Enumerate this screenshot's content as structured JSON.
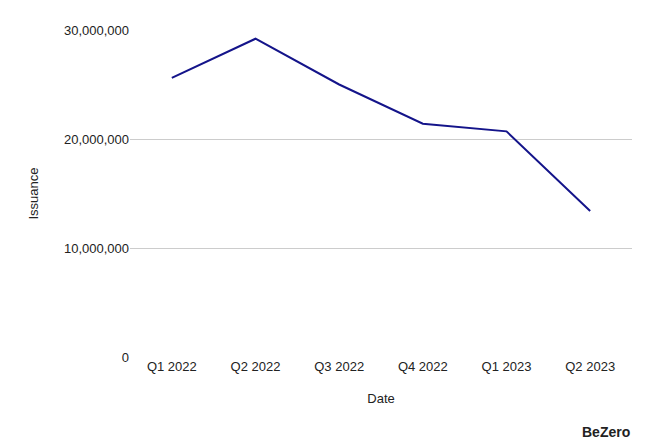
{
  "chart_data": {
    "type": "line",
    "x_label": "Date",
    "y_label": "Issuance",
    "categories": [
      "Q1 2022",
      "Q2 2022",
      "Q3 2022",
      "Q4 2022",
      "Q1 2023",
      "Q2 2023"
    ],
    "values": [
      25600000,
      29200000,
      25000000,
      21400000,
      20700000,
      13400000
    ],
    "color": "#14148a",
    "ylim": [
      0,
      30000000
    ],
    "yticks": [
      0,
      {
        "value": 10000000,
        "label": "10,000,000"
      },
      {
        "value": 20000000,
        "label": "20,000,000"
      },
      {
        "value": 30000000,
        "label": "30,000,000"
      }
    ],
    "grid": true,
    "annotations": [
      "BeZero"
    ]
  }
}
